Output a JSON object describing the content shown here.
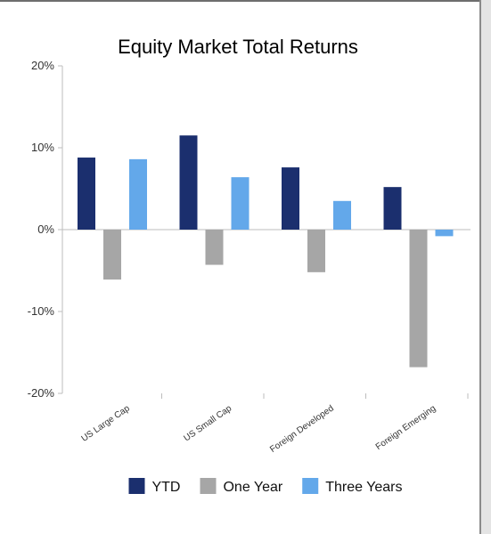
{
  "chart_data": {
    "type": "bar",
    "title": "Equity Market Total Returns",
    "categories": [
      "US Large Cap",
      "US Small Cap",
      "Foreign Developed",
      "Foreign Emerging"
    ],
    "series": [
      {
        "name": "YTD",
        "color": "#1b2f6e",
        "values": [
          8.8,
          11.5,
          7.6,
          5.2
        ]
      },
      {
        "name": "One Year",
        "color": "#a6a6a6",
        "values": [
          -6.1,
          -4.3,
          -5.2,
          -16.8
        ]
      },
      {
        "name": "Three Years",
        "color": "#63a8ea",
        "values": [
          8.6,
          6.4,
          3.5,
          -0.8
        ]
      }
    ],
    "ylim": [
      -20,
      20
    ],
    "yticks": [
      {
        "value": 20,
        "label": "20%"
      },
      {
        "value": 10,
        "label": "10%"
      },
      {
        "value": 0,
        "label": "0%"
      },
      {
        "value": -10,
        "label": "-10%"
      },
      {
        "value": -20,
        "label": "-20%"
      }
    ],
    "grid": false,
    "legend": "bottom"
  }
}
